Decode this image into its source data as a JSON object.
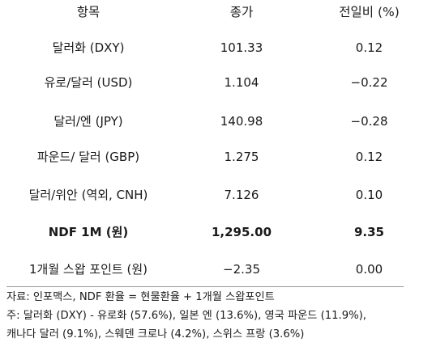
{
  "table": {
    "headers": {
      "name": "항목",
      "close": "종가",
      "change": "전일비 (%)"
    },
    "rows": [
      {
        "name": "달러화 (DXY)",
        "close": "101.33",
        "change": "0.12"
      },
      {
        "name": "유로/달러 (USD)",
        "close": "1.104",
        "change": "−0.22"
      },
      {
        "name": "달러/엔 (JPY)",
        "close": "140.98",
        "change": "−0.28"
      },
      {
        "name": "파운드/ 달러 (GBP)",
        "close": "1.275",
        "change": "0.12"
      },
      {
        "name": "달러/위안 (역외, CNH)",
        "close": "7.126",
        "change": "0.10"
      },
      {
        "name": "NDF 1M (원)",
        "close": "1,295.00",
        "change": "9.35"
      },
      {
        "name": "1개월 스왑 포인트 (원)",
        "close": "−2.35",
        "change": "0.00"
      }
    ]
  },
  "notes": {
    "source": "자료: 인포맥스, NDF 환율 = 현물환율 + 1개월 스왑포인트",
    "composition_line1": "주: 달러화 (DXY) - 유로화 (57.6%), 일본 엔 (13.6%), 영국 파운드 (11.9%),",
    "composition_line2": "캐나다 달러 (9.1%), 스웨덴 크로나 (4.2%), 스위스 프랑 (3.6%)"
  }
}
